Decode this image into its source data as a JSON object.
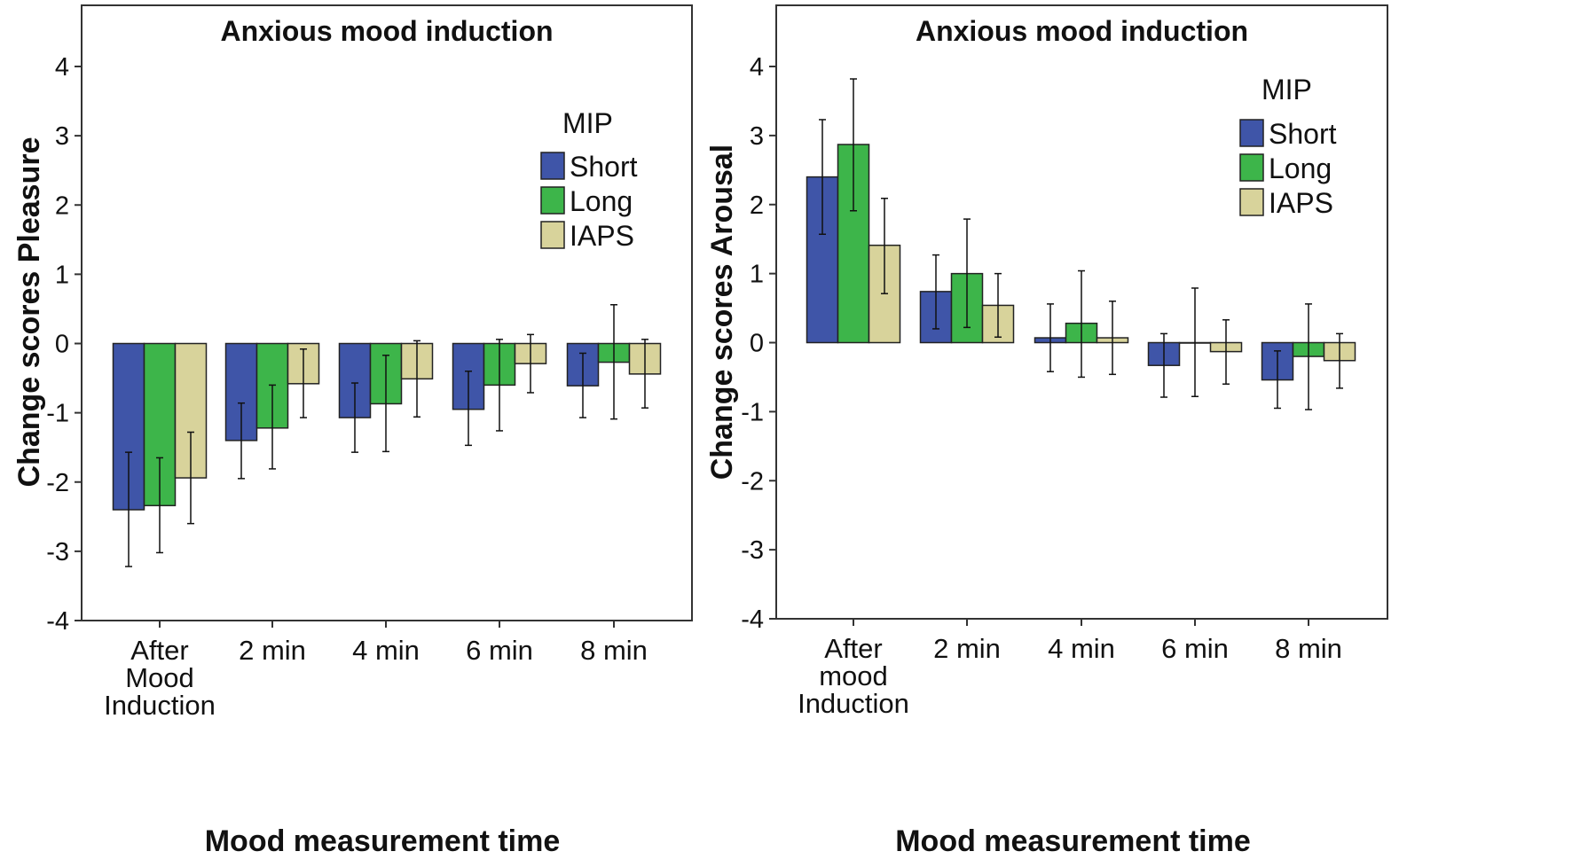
{
  "chart_data": [
    {
      "type": "bar",
      "title": "Anxious mood induction",
      "xlabel": "Mood measurement time",
      "ylabel": "Change scores Pleasure",
      "ylim": [
        -4,
        4
      ],
      "yticks": [
        "4",
        "3",
        "2",
        "1",
        "0",
        "-1",
        "-2",
        "-3",
        "-4"
      ],
      "categories": [
        [
          "After",
          "Mood",
          "Induction"
        ],
        [
          "2 min"
        ],
        [
          "4 min"
        ],
        [
          "6 min"
        ],
        [
          "8 min"
        ]
      ],
      "legend": {
        "title": "MIP",
        "position": "top-right"
      },
      "series": [
        {
          "name": "Short",
          "color": "#3f55a8",
          "values": [
            -2.4,
            -1.4,
            -1.07,
            -0.95,
            -0.61
          ],
          "err_low": [
            -3.22,
            -1.95,
            -1.57,
            -1.47,
            -1.07
          ],
          "err_high": [
            -1.57,
            -0.86,
            -0.57,
            -0.4,
            -0.14
          ]
        },
        {
          "name": "Long",
          "color": "#3db54a",
          "values": [
            -2.34,
            -1.22,
            -0.87,
            -0.6,
            -0.27
          ],
          "err_low": [
            -3.02,
            -1.81,
            -1.56,
            -1.26,
            -1.09
          ],
          "err_high": [
            -1.65,
            -0.6,
            -0.17,
            0.06,
            0.56
          ]
        },
        {
          "name": "IAPS",
          "color": "#d8d39b",
          "values": [
            -1.94,
            -0.58,
            -0.51,
            -0.29,
            -0.44
          ],
          "err_low": [
            -2.6,
            -1.07,
            -1.06,
            -0.71,
            -0.93
          ],
          "err_high": [
            -1.28,
            -0.08,
            0.04,
            0.13,
            0.06
          ]
        }
      ]
    },
    {
      "type": "bar",
      "title": "Anxious mood induction",
      "xlabel": "Mood measurement time",
      "ylabel": "Change scores Arousal",
      "ylim": [
        -4,
        4
      ],
      "yticks": [
        "4",
        "3",
        "2",
        "1",
        "0",
        "-1",
        "-2",
        "-3",
        "-4"
      ],
      "categories": [
        [
          "After",
          "mood",
          "Induction"
        ],
        [
          "2 min"
        ],
        [
          "4 min"
        ],
        [
          "6 min"
        ],
        [
          "8 min"
        ]
      ],
      "legend": {
        "title": "MIP",
        "position": "top-right"
      },
      "series": [
        {
          "name": "Short",
          "color": "#3f55a8",
          "values": [
            2.4,
            0.74,
            0.07,
            -0.33,
            -0.54
          ],
          "err_low": [
            1.57,
            0.2,
            -0.42,
            -0.79,
            -0.95
          ],
          "err_high": [
            3.23,
            1.27,
            0.56,
            0.13,
            -0.12
          ]
        },
        {
          "name": "Long",
          "color": "#3db54a",
          "values": [
            2.87,
            1.0,
            0.28,
            0.0,
            -0.2
          ],
          "err_low": [
            1.91,
            0.22,
            -0.5,
            -0.78,
            -0.97
          ],
          "err_high": [
            3.82,
            1.79,
            1.04,
            0.79,
            0.56
          ]
        },
        {
          "name": "IAPS",
          "color": "#d8d39b",
          "values": [
            1.41,
            0.54,
            0.07,
            -0.13,
            -0.26
          ],
          "err_low": [
            0.71,
            0.08,
            -0.46,
            -0.6,
            -0.66
          ],
          "err_high": [
            2.09,
            1.0,
            0.6,
            0.33,
            0.13
          ]
        }
      ]
    }
  ]
}
